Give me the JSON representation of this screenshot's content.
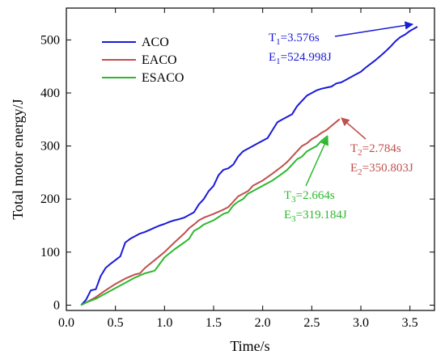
{
  "chart_data": {
    "type": "line",
    "xlabel": "Time/s",
    "ylabel": "Total motor energy/J",
    "xlim": [
      0.0,
      3.75
    ],
    "ylim": [
      -10,
      560
    ],
    "xticks": [
      0.0,
      0.5,
      1.0,
      1.5,
      2.0,
      2.5,
      3.0,
      3.5
    ],
    "xtick_labels": [
      "0.0",
      "0.5",
      "1.0",
      "1.5",
      "2.0",
      "2.5",
      "3.0",
      "3.5"
    ],
    "yticks": [
      0,
      100,
      200,
      300,
      400,
      500
    ],
    "ytick_labels": [
      "0",
      "100",
      "200",
      "300",
      "400",
      "500"
    ],
    "legend_position": "top-left",
    "series": [
      {
        "name": "ACO",
        "color": "#1a1ad8",
        "x": [
          0.15,
          0.2,
          0.25,
          0.3,
          0.35,
          0.4,
          0.45,
          0.5,
          0.55,
          0.6,
          0.65,
          0.7,
          0.75,
          0.8,
          0.85,
          0.9,
          0.95,
          1.0,
          1.05,
          1.1,
          1.15,
          1.2,
          1.25,
          1.3,
          1.35,
          1.4,
          1.45,
          1.5,
          1.55,
          1.6,
          1.65,
          1.7,
          1.75,
          1.8,
          1.85,
          1.9,
          1.95,
          2.0,
          2.05,
          2.1,
          2.15,
          2.2,
          2.25,
          2.3,
          2.35,
          2.4,
          2.45,
          2.5,
          2.55,
          2.6,
          2.65,
          2.7,
          2.75,
          2.8,
          2.85,
          2.9,
          2.95,
          3.0,
          3.05,
          3.1,
          3.15,
          3.2,
          3.25,
          3.3,
          3.35,
          3.4,
          3.45,
          3.5,
          3.55,
          3.576
        ],
        "y": [
          0,
          10,
          28,
          30,
          55,
          70,
          78,
          85,
          92,
          118,
          125,
          130,
          135,
          138,
          142,
          146,
          150,
          153,
          157,
          160,
          162,
          165,
          170,
          175,
          190,
          200,
          215,
          225,
          245,
          255,
          258,
          265,
          280,
          290,
          295,
          300,
          305,
          310,
          315,
          330,
          345,
          350,
          355,
          360,
          375,
          385,
          395,
          400,
          405,
          408,
          410,
          412,
          418,
          420,
          425,
          430,
          435,
          440,
          448,
          455,
          462,
          470,
          478,
          487,
          497,
          505,
          510,
          517,
          522,
          524.998
        ]
      },
      {
        "name": "EACO",
        "color": "#c0504d",
        "x": [
          0.15,
          0.2,
          0.3,
          0.4,
          0.5,
          0.6,
          0.7,
          0.75,
          0.8,
          0.9,
          1.0,
          1.1,
          1.2,
          1.25,
          1.3,
          1.35,
          1.4,
          1.5,
          1.6,
          1.65,
          1.7,
          1.75,
          1.8,
          1.85,
          1.9,
          2.0,
          2.1,
          2.2,
          2.25,
          2.3,
          2.35,
          2.4,
          2.45,
          2.5,
          2.55,
          2.6,
          2.65,
          2.7,
          2.784
        ],
        "y": [
          0,
          5,
          15,
          28,
          40,
          50,
          58,
          60,
          70,
          85,
          100,
          118,
          135,
          145,
          152,
          160,
          165,
          172,
          180,
          185,
          195,
          205,
          210,
          215,
          225,
          235,
          248,
          262,
          270,
          280,
          290,
          300,
          305,
          313,
          318,
          325,
          330,
          338,
          350.803
        ]
      },
      {
        "name": "ESACO",
        "color": "#2db82d",
        "x": [
          0.15,
          0.2,
          0.3,
          0.4,
          0.5,
          0.6,
          0.7,
          0.8,
          0.9,
          1.0,
          1.1,
          1.2,
          1.25,
          1.3,
          1.35,
          1.4,
          1.5,
          1.6,
          1.65,
          1.7,
          1.75,
          1.8,
          1.85,
          1.9,
          2.0,
          2.1,
          2.2,
          2.25,
          2.3,
          2.35,
          2.4,
          2.45,
          2.5,
          2.55,
          2.6,
          2.664
        ],
        "y": [
          0,
          5,
          12,
          22,
          32,
          42,
          52,
          60,
          65,
          90,
          105,
          118,
          125,
          140,
          145,
          152,
          160,
          172,
          175,
          188,
          195,
          200,
          210,
          215,
          225,
          235,
          248,
          255,
          265,
          275,
          280,
          290,
          295,
          300,
          310,
          319.184
        ]
      }
    ],
    "annotations": [
      {
        "series": "ACO",
        "color": "#1a1ad8",
        "lines": [
          {
            "base": "T",
            "sub": "1",
            "rest": "=3.576s"
          },
          {
            "base": "E",
            "sub": "1",
            "rest": "=524.998J"
          }
        ]
      },
      {
        "series": "EACO",
        "color": "#c0504d",
        "lines": [
          {
            "base": "T",
            "sub": "2",
            "rest": "=2.784s"
          },
          {
            "base": "E",
            "sub": "2",
            "rest": "=350.803J"
          }
        ]
      },
      {
        "series": "ESACO",
        "color": "#2db82d",
        "lines": [
          {
            "base": "T",
            "sub": "3",
            "rest": "=2.664s"
          },
          {
            "base": "E",
            "sub": "3",
            "rest": "=319.184J"
          }
        ]
      }
    ]
  }
}
